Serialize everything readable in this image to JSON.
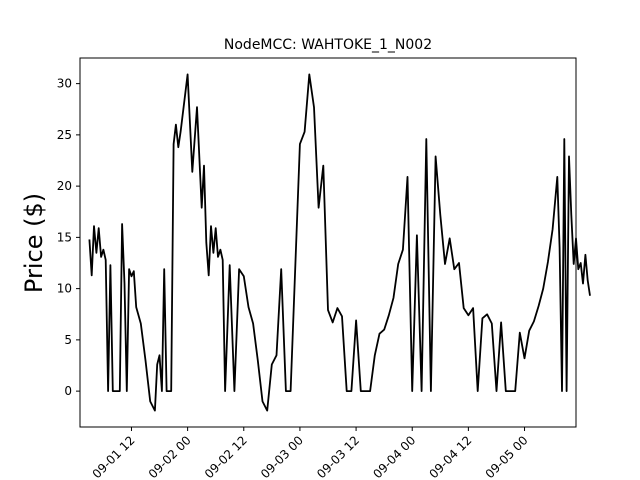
{
  "chart_data": {
    "type": "line",
    "title": "NodeMCC: WAHTOKE_1_N002",
    "xlabel": "",
    "ylabel": "Price ($)",
    "ylim": [
      -3.5,
      32.5
    ],
    "xlim": [
      "2023-09-01 01:00",
      "2023-09-05 11:00"
    ],
    "grid": false,
    "y_ticks": [
      0,
      5,
      10,
      15,
      20,
      25,
      30
    ],
    "x_ticks": [
      "09-01 12",
      "09-02 00",
      "09-02 12",
      "09-03 00",
      "09-03 12",
      "09-04 00",
      "09-04 12",
      "09-05 00"
    ],
    "x_tick_labels": [
      "09-01 12",
      "09-02 00",
      "09-02 12",
      "09-03 00",
      "09-03 12",
      "09-04 00",
      "09-04 12",
      "09-05 00"
    ],
    "series": [
      {
        "color": "#000000",
        "x": [
          "09-01 03:00",
          "09-01 03:30",
          "09-01 04:00",
          "09-01 04:30",
          "09-01 05:00",
          "09-01 05:30",
          "09-01 06:00",
          "09-01 06:30",
          "09-01 07:00",
          "09-01 07:30",
          "09-01 08:00",
          "09-01 08:30",
          "09-01 09:00",
          "09-01 09:30",
          "09-01 10:00",
          "09-01 10:30",
          "09-01 11:00",
          "09-01 11:30",
          "09-01 12:00",
          "09-01 12:30",
          "09-01 13:00",
          "09-01 14:00",
          "09-01 15:00",
          "09-01 16:00",
          "09-01 17:00",
          "09-01 17:30",
          "09-01 18:00",
          "09-01 18:30",
          "09-01 19:00",
          "09-01 19:30",
          "09-01 20:00",
          "09-01 20:30",
          "09-01 21:00",
          "09-01 21:30",
          "09-01 22:00",
          "09-01 22:30",
          "09-02 00:00",
          "09-02 01:00",
          "09-02 02:00",
          "09-02 03:00",
          "09-02 03:30",
          "09-02 04:00",
          "09-02 04:30",
          "09-02 05:00",
          "09-02 05:30",
          "09-02 06:00",
          "09-02 06:30",
          "09-02 07:00",
          "09-02 07:30",
          "09-02 08:00",
          "09-02 09:00",
          "09-02 10:00",
          "09-02 11:00",
          "09-02 12:00",
          "09-02 13:00",
          "09-02 14:00",
          "09-02 15:00",
          "09-02 16:00",
          "09-02 17:00",
          "09-02 18:00",
          "09-02 19:00",
          "09-02 20:00",
          "09-02 21:00",
          "09-02 22:00",
          "09-03 00:00",
          "09-03 01:00",
          "09-03 02:00",
          "09-03 03:00",
          "09-03 04:00",
          "09-03 05:00",
          "09-03 06:00",
          "09-03 07:00",
          "09-03 08:00",
          "09-03 09:00",
          "09-03 10:00",
          "09-03 11:00",
          "09-03 12:00",
          "09-03 13:00",
          "09-03 14:00",
          "09-03 15:00",
          "09-03 16:00",
          "09-03 17:00",
          "09-03 18:00",
          "09-03 19:00",
          "09-03 20:00",
          "09-03 21:00",
          "09-03 22:00",
          "09-03 23:00",
          "09-04 00:00",
          "09-04 01:00",
          "09-04 02:00",
          "09-04 03:00",
          "09-04 04:00",
          "09-04 05:00",
          "09-04 06:00",
          "09-04 07:00",
          "09-04 08:00",
          "09-04 09:00",
          "09-04 10:00",
          "09-04 11:00",
          "09-04 12:00",
          "09-04 13:00",
          "09-04 14:00",
          "09-04 15:00",
          "09-04 16:00",
          "09-04 17:00",
          "09-04 18:00",
          "09-04 19:00",
          "09-04 20:00",
          "09-04 21:00",
          "09-04 22:00",
          "09-04 23:00",
          "09-05 00:00",
          "09-05 01:00",
          "09-05 02:00",
          "09-05 03:00",
          "09-05 04:00",
          "09-05 05:00",
          "09-05 06:00",
          "09-05 07:00"
        ],
        "values": [
          14.8,
          11.3,
          16.1,
          13.5,
          15.9,
          13.1,
          13.8,
          12.8,
          0.0,
          12.3,
          0.0,
          0.0,
          0.0,
          0.0,
          16.3,
          10.5,
          0.0,
          11.9,
          11.2,
          11.7,
          8.2,
          6.6,
          3.0,
          -1.0,
          -1.9,
          2.6,
          3.5,
          0.0,
          11.9,
          0.0,
          0.0,
          0.0,
          24.1,
          26.0,
          23.8,
          25.3,
          30.9,
          21.4,
          27.7,
          17.9,
          22.0,
          14.5,
          11.3,
          16.1,
          13.5,
          15.9,
          13.1,
          13.8,
          12.8,
          0.0,
          12.3,
          0.0,
          11.9,
          11.2,
          8.2,
          6.6,
          3.0,
          -1.0,
          -1.9,
          2.6,
          3.5,
          11.9,
          0.0,
          0.0,
          24.1,
          25.3,
          30.9,
          27.7,
          17.9,
          22.0,
          7.9,
          6.7,
          8.1,
          7.3,
          0.0,
          0.0,
          6.9,
          0.0,
          0.0,
          0.0,
          3.5,
          5.6,
          6.0,
          7.4,
          9.1,
          12.4,
          13.8,
          20.9,
          0.0,
          15.2,
          0.0,
          24.6,
          0.0,
          22.9,
          17.2,
          12.4,
          14.9,
          11.9,
          12.5,
          8.1,
          7.4,
          8.1,
          0.0,
          7.1,
          7.5,
          6.6,
          0.0,
          6.7,
          0.0,
          0.0,
          0.0,
          5.7,
          3.2,
          5.9,
          6.8,
          8.3,
          10.0,
          12.6,
          15.8,
          20.9
        ]
      }
    ],
    "series_tail": {
      "x": [
        "09-05 07:30",
        "09-05 08:00",
        "09-05 08:30",
        "09-05 09:00",
        "09-05 09:30",
        "09-05 10:00",
        "09-05 10:30",
        "09-05 11:00",
        "09-05 11:30",
        "09-05 12:00",
        "09-05 12:30",
        "09-05 13:00",
        "09-05 13:30",
        "09-05 14:00"
      ],
      "values": [
        14.0,
        0.0,
        24.6,
        0.0,
        22.9,
        17.2,
        12.4,
        14.9,
        11.9,
        12.5,
        10.5,
        13.3,
        10.8,
        9.3
      ]
    }
  }
}
